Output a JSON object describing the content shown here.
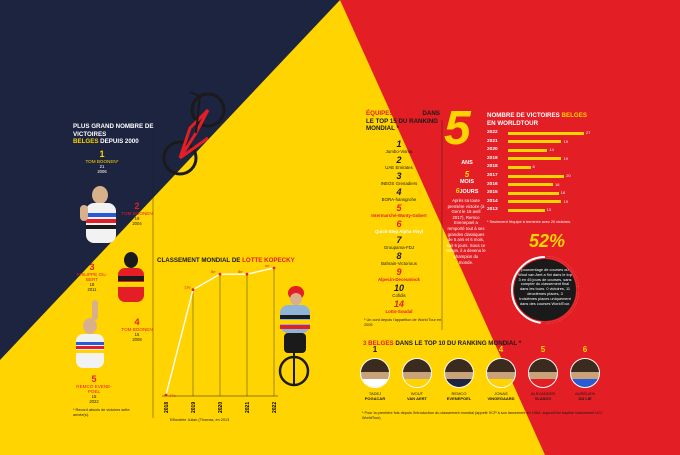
{
  "colors": {
    "navy": "#1d2440",
    "yellow": "#ffd400",
    "red": "#e31e24"
  },
  "victories": {
    "title_line1": "PLUS GRAND NOMBRE DE VICTOIRES",
    "title_line2_a": "BELGES",
    "title_line2_b": " DEPUIS 2000",
    "ranks": [
      {
        "rank": "1",
        "name": "TOM BOONEN*",
        "count": "21",
        "year": "2006"
      },
      {
        "rank": "2",
        "name": "TOM BOONEN",
        "count": "19",
        "year": "2004"
      },
      {
        "rank": "3",
        "name": "PHILIPPE GIL-BERT",
        "count": "18",
        "year": "2011"
      },
      {
        "rank": "4",
        "name": "TOM BOONEN",
        "count": "15",
        "year": "2008"
      },
      {
        "rank": "5",
        "name": "REMCO EVENE-POEL",
        "count": "15",
        "year": "2022"
      }
    ],
    "footnote": "* Record absolu de victoires sette année(s)."
  },
  "kopecky": {
    "title_a": "CLASSEMENT MONDIAL DE ",
    "title_b": "LOTTE KOPECKY",
    "years": [
      "2018",
      "2019",
      "2020",
      "2021",
      "2022"
    ],
    "ranks": [
      47,
      13,
      8,
      8,
      6
    ],
    "labels": [
      "47e",
      "13e",
      "8e",
      "8e",
      "6e"
    ],
    "footnote": "Effondrée Julian (Thomas, en 2013"
  },
  "teams": {
    "title_a": "ÉQUIPES BELGES",
    "title_b": " DANS LE TOP 15 DU RANKING MONDIAL *",
    "rows": [
      {
        "rank": "1",
        "team": "Jumbo-Visma",
        "color": "#1a1a1a"
      },
      {
        "rank": "2",
        "team": "UAE Emirates",
        "color": "#1a1a1a"
      },
      {
        "rank": "3",
        "team": "INEOS Grenadiers",
        "color": "#1a1a1a"
      },
      {
        "rank": "4",
        "team": "BORA-hansgrohe",
        "color": "#1a1a1a"
      },
      {
        "rank": "5",
        "team": "Intermarché-Wanty-Gobert",
        "color": "#e31e24"
      },
      {
        "rank": "6",
        "team": "Quick-Step Alpha Vinyl",
        "color": "#ffffff"
      },
      {
        "rank": "7",
        "team": "Groupama-FDJ",
        "color": "#1a1a1a"
      },
      {
        "rank": "8",
        "team": "Bahrain-Victorious",
        "color": "#1a1a1a"
      },
      {
        "rank": "9",
        "team": "Alpecin-Deceuninck",
        "color": "#e31e24"
      },
      {
        "rank": "10",
        "team": "Cofidis",
        "color": "#1a1a1a"
      },
      {
        "rank": "14",
        "team": "Lotto-Soudal",
        "color": "#e31e24"
      }
    ],
    "footnote": "* Un cord depuis l'apparition de World Tour en 2005"
  },
  "five": {
    "big": "5",
    "ans": "ANS",
    "mois_num": "5",
    "mois": "MOIS",
    "jours_num": "6",
    "jours": "JOURS",
    "text": "Après sa toute première victoire (à Gent le 15 avril 2017), Remco Evenepoel a remporté tout à ses grandes classiques de 5 ans et 6 mois, soit 6 jours. Sous ce temps, il a devenu le champion du monde."
  },
  "worldtour": {
    "title_a": "NOMBRE DE VICTOIRES ",
    "title_b": "BELGES",
    "title_c": " EN WORLDTOUR",
    "years": [
      "2022",
      "2021",
      "2020",
      "2019",
      "2018",
      "2017",
      "2016",
      "2015",
      "2014",
      "2013"
    ],
    "values": [
      27,
      19,
      14,
      19,
      8,
      20,
      16,
      18,
      19,
      13
    ],
    "footnote": "* Seulement l'équipe à terminée avec 20 victoires."
  },
  "percent": {
    "value": "52%",
    "fraction": 0.52,
    "text": "pourcentage de courses où Wout van Aert a fini dans le top 3 en 45 jours de courses, sans compter du classement final dans les tours. 0 victoires, 11 deuxièmes places, 3 troisièmes places uniquement dans des courses WorldTour."
  },
  "top10": {
    "title_a": "3 BELGES",
    "title_b": " DANS LE TOP 10 DU RANKING MONDIAL *",
    "riders": [
      {
        "rank": "1",
        "first": "TADEJ",
        "last": "POGACAR"
      },
      {
        "rank": "2",
        "first": "WOUT",
        "last": "VAN AERT"
      },
      {
        "rank": "3",
        "first": "REMCO",
        "last": "EVENEPOEL"
      },
      {
        "rank": "4",
        "first": "JONAS",
        "last": "VINGEGAARD"
      },
      {
        "rank": "5",
        "first": "ALEXANDER",
        "last": "VLASOV"
      },
      {
        "rank": "6",
        "first": "AURÉLIEN",
        "last": "DU LIE"
      }
    ],
    "footnote": "* Pour la première fois depuis l'introduction du classement mondial (appelé l'ICP à son lancement en 1984, aujourd'hui baptisé classement UCI WorldTour)."
  }
}
